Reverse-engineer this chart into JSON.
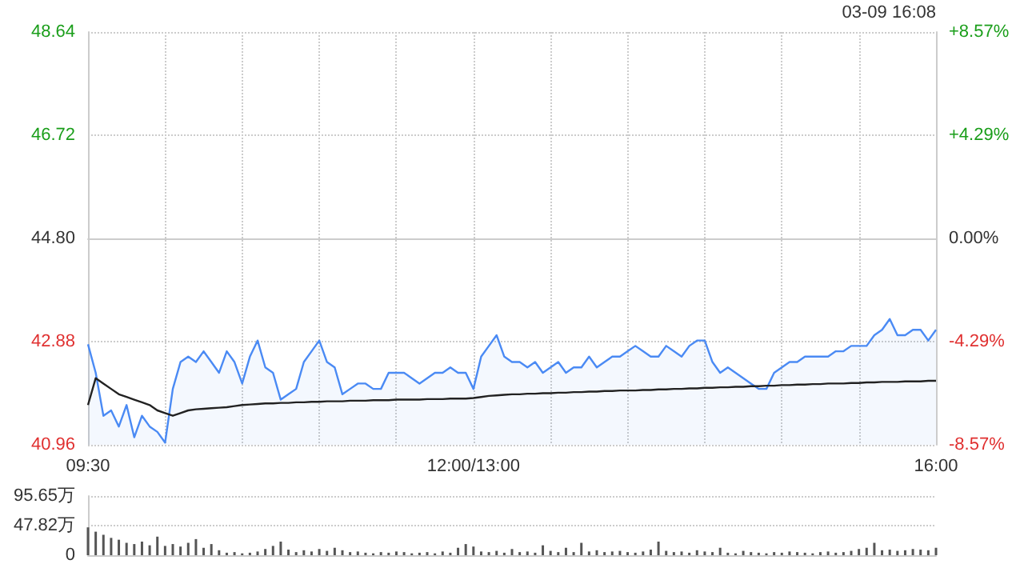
{
  "chart_data": [
    {
      "type": "line",
      "annotations": [
        "03-09 16:08"
      ],
      "categories": [
        "09:30",
        null,
        null,
        null,
        null,
        null,
        null,
        null,
        null,
        null,
        null,
        null,
        null,
        null,
        null,
        null,
        null,
        null,
        null,
        null,
        null,
        null,
        null,
        null,
        null,
        null,
        null,
        null,
        null,
        null,
        null,
        null,
        null,
        null,
        null,
        null,
        null,
        null,
        null,
        null,
        null,
        null,
        null,
        null,
        null,
        null,
        null,
        null,
        null,
        null,
        "12:00/13:00",
        null,
        null,
        null,
        null,
        null,
        null,
        null,
        null,
        null,
        null,
        null,
        null,
        null,
        null,
        null,
        null,
        null,
        null,
        null,
        null,
        null,
        null,
        null,
        null,
        null,
        null,
        null,
        null,
        null,
        null,
        null,
        null,
        null,
        null,
        null,
        null,
        null,
        null,
        null,
        null,
        null,
        null,
        null,
        null,
        null,
        null,
        null,
        null,
        null,
        null,
        null,
        null,
        null,
        null,
        null,
        null,
        null,
        null,
        null,
        "16:00"
      ],
      "series": [
        {
          "type": "area",
          "color": "#4a8af4",
          "values": [
            42.83,
            42.3,
            41.5,
            41.6,
            41.3,
            41.7,
            41.1,
            41.5,
            41.3,
            41.2,
            41.0,
            42.0,
            42.5,
            42.6,
            42.5,
            42.7,
            42.5,
            42.3,
            42.7,
            42.5,
            42.1,
            42.6,
            42.9,
            42.4,
            42.3,
            41.8,
            41.9,
            42.0,
            42.5,
            42.7,
            42.9,
            42.5,
            42.4,
            41.9,
            42.0,
            42.1,
            42.1,
            42.0,
            42.0,
            42.3,
            42.3,
            42.3,
            42.2,
            42.1,
            42.2,
            42.3,
            42.3,
            42.4,
            42.3,
            42.3,
            42.0,
            42.6,
            42.8,
            43.0,
            42.6,
            42.5,
            42.5,
            42.4,
            42.5,
            42.3,
            42.4,
            42.5,
            42.3,
            42.4,
            42.4,
            42.6,
            42.4,
            42.5,
            42.6,
            42.6,
            42.7,
            42.8,
            42.7,
            42.6,
            42.6,
            42.8,
            42.7,
            42.6,
            42.8,
            42.9,
            42.9,
            42.5,
            42.3,
            42.4,
            42.3,
            42.2,
            42.1,
            42.0,
            42.0,
            42.3,
            42.4,
            42.5,
            42.5,
            42.6,
            42.6,
            42.6,
            42.6,
            42.7,
            42.7,
            42.8,
            42.8,
            42.8,
            43.0,
            43.1,
            43.3,
            43.0,
            43.0,
            43.1,
            43.1,
            42.9,
            43.1
          ]
        },
        {
          "color": "#222222",
          "values": [
            41.7,
            42.2,
            42.1,
            42.0,
            41.9,
            41.85,
            41.8,
            41.75,
            41.7,
            41.6,
            41.55,
            41.5,
            41.55,
            41.6,
            41.62,
            41.63,
            41.64,
            41.65,
            41.66,
            41.68,
            41.7,
            41.71,
            41.72,
            41.73,
            41.73,
            41.74,
            41.74,
            41.75,
            41.75,
            41.76,
            41.76,
            41.77,
            41.77,
            41.77,
            41.78,
            41.78,
            41.78,
            41.79,
            41.79,
            41.79,
            41.8,
            41.8,
            41.8,
            41.8,
            41.81,
            41.81,
            41.81,
            41.82,
            41.82,
            41.82,
            41.83,
            41.85,
            41.87,
            41.88,
            41.89,
            41.9,
            41.9,
            41.91,
            41.91,
            41.92,
            41.92,
            41.93,
            41.93,
            41.94,
            41.94,
            41.95,
            41.95,
            41.96,
            41.96,
            41.97,
            41.97,
            41.97,
            41.98,
            41.98,
            41.99,
            41.99,
            42.0,
            42.0,
            42.01,
            42.01,
            42.02,
            42.02,
            42.03,
            42.03,
            42.04,
            42.04,
            42.05,
            42.05,
            42.06,
            42.06,
            42.07,
            42.07,
            42.08,
            42.08,
            42.09,
            42.09,
            42.1,
            42.1,
            42.1,
            42.11,
            42.11,
            42.12,
            42.12,
            42.13,
            42.13,
            42.13,
            42.14,
            42.14,
            42.14,
            42.15,
            42.15
          ]
        }
      ],
      "ylim": [
        40.96,
        48.64
      ],
      "yticks": [
        40.96,
        42.88,
        {
          "value": 44.8,
          "label": "44.80"
        },
        46.72,
        48.64
      ],
      "y2lim": [
        -8.57,
        8.57
      ],
      "y2ticks": [
        {
          "value": -8.57,
          "label": "-8.57%"
        },
        {
          "value": -4.29,
          "label": "-4.29%"
        },
        {
          "value": 0,
          "label": "0.00%"
        },
        {
          "value": 4.29,
          "label": "+4.29%"
        },
        {
          "value": 8.57,
          "label": "+8.57%"
        }
      ],
      "grid": true,
      "marker": "none",
      "line_style": "solid"
    },
    {
      "type": "bar",
      "color": "#555555",
      "categories": [
        null,
        null,
        null,
        null,
        null,
        null,
        null,
        null,
        null,
        null,
        null,
        null,
        null,
        null,
        null,
        null,
        null,
        null,
        null,
        null,
        null,
        null,
        null,
        null,
        null,
        null,
        null,
        null,
        null,
        null,
        null,
        null,
        null,
        null,
        null,
        null,
        null,
        null,
        null,
        null,
        null,
        null,
        null,
        null,
        null,
        null,
        null,
        null,
        null,
        null,
        null,
        null,
        null,
        null,
        null,
        null,
        null,
        null,
        null,
        null,
        null,
        null,
        null,
        null,
        null,
        null,
        null,
        null,
        null,
        null,
        null,
        null,
        null,
        null,
        null,
        null,
        null,
        null,
        null,
        null,
        null,
        null,
        null,
        null,
        null,
        null,
        null,
        null,
        null,
        null,
        null,
        null,
        null,
        null,
        null,
        null,
        null,
        null,
        null,
        null,
        null,
        null,
        null,
        null,
        null,
        null,
        null,
        null,
        null,
        null,
        null
      ],
      "values": [
        45,
        38,
        33,
        28,
        25,
        20,
        18,
        22,
        16,
        30,
        15,
        18,
        14,
        20,
        26,
        12,
        18,
        8,
        4,
        5,
        3,
        4,
        6,
        10,
        15,
        22,
        9,
        5,
        8,
        6,
        10,
        7,
        12,
        8,
        5,
        6,
        4,
        3,
        5,
        4,
        6,
        5,
        3,
        4,
        5,
        3,
        6,
        4,
        12,
        18,
        14,
        6,
        5,
        7,
        4,
        10,
        5,
        6,
        4,
        16,
        7,
        5,
        12,
        5,
        20,
        6,
        8,
        5,
        6,
        7,
        5,
        4,
        6,
        9,
        22,
        7,
        5,
        6,
        4,
        8,
        6,
        5,
        12,
        4,
        3,
        7,
        5,
        4,
        3,
        5,
        4,
        6,
        5,
        4,
        3,
        5,
        6,
        4,
        5,
        7,
        10,
        12,
        20,
        8,
        9,
        7,
        8,
        10,
        9,
        8,
        12
      ],
      "ylim": [
        0,
        95.65
      ],
      "yticks": [
        0,
        {
          "value": 47.82,
          "label": "47.82万"
        },
        {
          "value": 95.65,
          "label": "95.65万"
        }
      ],
      "tick_labels": "y",
      "grid": "y"
    }
  ]
}
